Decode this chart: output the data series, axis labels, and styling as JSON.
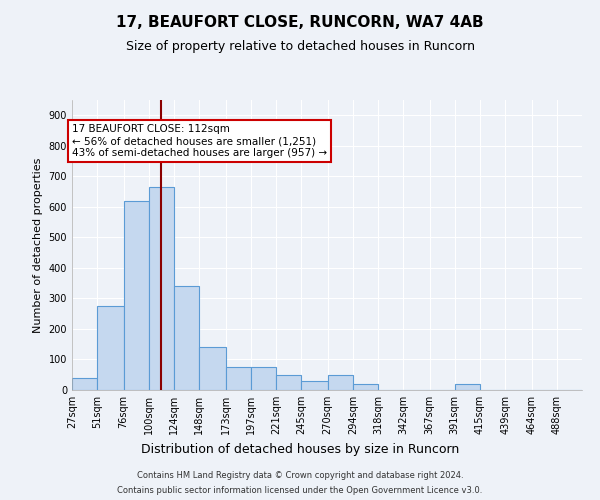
{
  "title": "17, BEAUFORT CLOSE, RUNCORN, WA7 4AB",
  "subtitle": "Size of property relative to detached houses in Runcorn",
  "xlabel": "Distribution of detached houses by size in Runcorn",
  "ylabel": "Number of detached properties",
  "footer_line1": "Contains HM Land Registry data © Crown copyright and database right 2024.",
  "footer_line2": "Contains public sector information licensed under the Open Government Licence v3.0.",
  "bar_edges": [
    27,
    51,
    76,
    100,
    124,
    148,
    173,
    197,
    221,
    245,
    270,
    294,
    318,
    342,
    367,
    391,
    415,
    439,
    464,
    488,
    512
  ],
  "bar_heights": [
    40,
    275,
    620,
    665,
    340,
    140,
    75,
    75,
    50,
    30,
    50,
    20,
    0,
    0,
    0,
    20,
    0,
    0,
    0,
    0
  ],
  "bar_color": "#c5d8ef",
  "bar_edgecolor": "#5b9bd5",
  "property_size": 112,
  "vline_color": "#8b0000",
  "annotation_line1": "17 BEAUFORT CLOSE: 112sqm",
  "annotation_line2": "← 56% of detached houses are smaller (1,251)",
  "annotation_line3": "43% of semi-detached houses are larger (957) →",
  "annotation_box_color": "#ffffff",
  "annotation_box_edgecolor": "#cc0000",
  "ylim": [
    0,
    950
  ],
  "yticks": [
    0,
    100,
    200,
    300,
    400,
    500,
    600,
    700,
    800,
    900
  ],
  "background_color": "#eef2f8",
  "grid_color": "#ffffff",
  "title_fontsize": 11,
  "subtitle_fontsize": 9,
  "ylabel_fontsize": 8,
  "xlabel_fontsize": 9,
  "tick_fontsize": 7
}
